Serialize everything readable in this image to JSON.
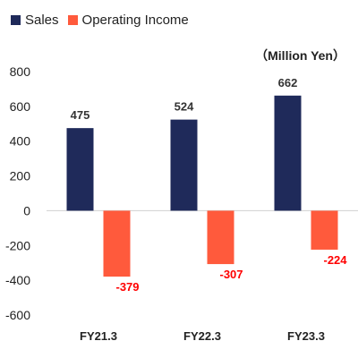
{
  "chart_data": {
    "type": "bar",
    "title": "",
    "xlabel": "",
    "ylabel": "",
    "unit_label": "（Million Yen）",
    "categories": [
      "FY21.3",
      "FY22.3",
      "FY23.3"
    ],
    "series": [
      {
        "name": "Sales",
        "color": "#1F2A5A",
        "values": [
          475,
          524,
          662
        ],
        "label_color": "#333333"
      },
      {
        "name": "Operating Income",
        "color": "#FF5A3C",
        "values": [
          -379,
          -307,
          -224
        ],
        "label_color": "#FF0000"
      }
    ],
    "ylim": [
      -600,
      800
    ],
    "yticks": [
      800,
      600,
      400,
      200,
      0,
      -200,
      -400,
      -600
    ],
    "grid": false,
    "legend_position": "top-left"
  }
}
